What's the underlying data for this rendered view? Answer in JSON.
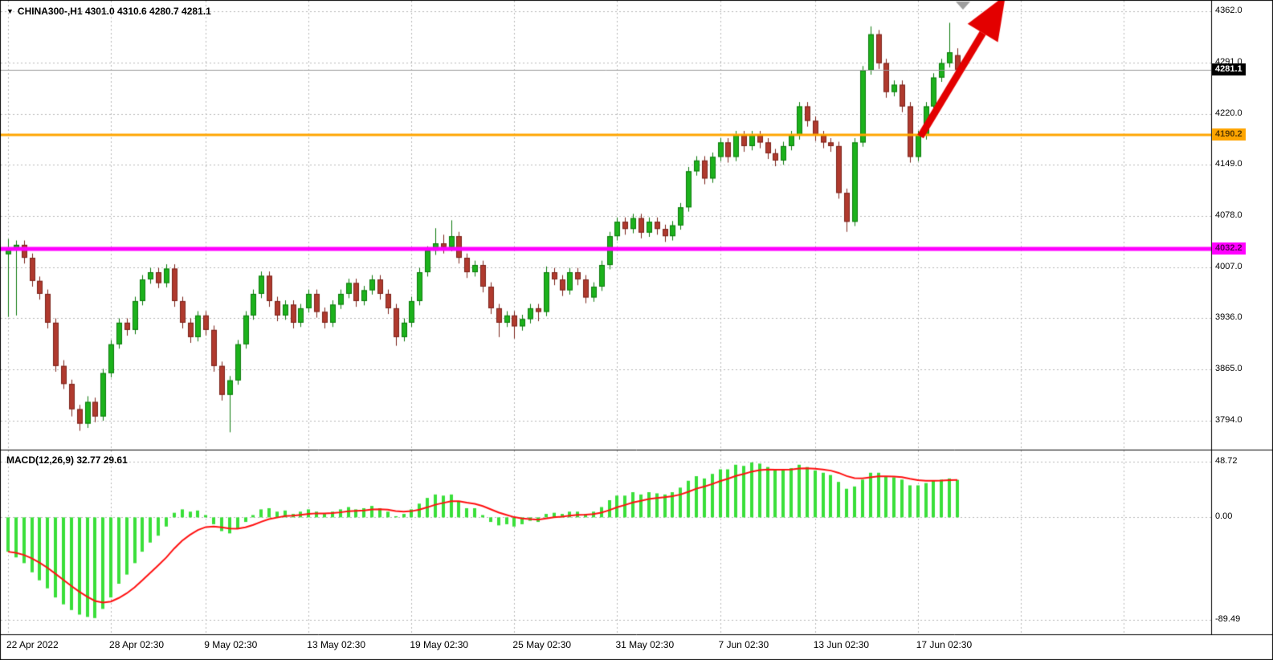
{
  "header": {
    "symbol_marker": "▼",
    "title": "CHINA300-,H1  4301.0 4310.6 4280.7 4281.1",
    "symbol": "CHINA300-",
    "period": "H1"
  },
  "indicator": {
    "label": "MACD(12,26,9) 32.77 29.61",
    "macd_value": 32.77,
    "signal_value": 29.61
  },
  "price_badges": {
    "current": {
      "label": "4281.1",
      "value": 4281.1,
      "bg": "#000000"
    },
    "resistance": {
      "label": "4190.2",
      "value": 4190.2,
      "bg": "#FFA500"
    },
    "support": {
      "label": "4032.2",
      "value": 4032.2,
      "bg": "#FF00FF"
    }
  },
  "colors": {
    "bull_fill": "#1CB21C",
    "bull_stroke": "#0E7A0E",
    "bear_fill": "#B03A2E",
    "bear_stroke": "#7B241C",
    "macd_bar": "#3ADF3A",
    "macd_signal": "#FF1111",
    "grid": "#b9b9b9",
    "bid_line": "#9a9a9a",
    "arrow": "#E30000",
    "marker_gray": "#9e9e9e"
  },
  "chart_data": [
    {
      "type": "candlestick",
      "title": "CHINA300-,H1",
      "ohlc_display": {
        "open": 4301.0,
        "high": 4310.6,
        "low": 4280.7,
        "close": 4281.1
      },
      "ylim": [
        3753.9,
        4377.6
      ],
      "y_ticks": [
        {
          "label": "4362.0",
          "value": 4362.0
        },
        {
          "label": "4291.0",
          "value": 4291.0
        },
        {
          "label": "4220.0",
          "value": 4220.0
        },
        {
          "label": "4149.0",
          "value": 4149.0
        },
        {
          "label": "4078.0",
          "value": 4078.0
        },
        {
          "label": "4007.0",
          "value": 4007.0
        },
        {
          "label": "3936.0",
          "value": 3936.0
        },
        {
          "label": "3865.0",
          "value": 3865.0
        },
        {
          "label": "3794.0",
          "value": 3794.0
        }
      ],
      "x_ticks": [
        {
          "label": "22 Apr 2022",
          "index": 0
        },
        {
          "label": "28 Apr 02:30",
          "index": 13
        },
        {
          "label": "9 May 02:30",
          "index": 25
        },
        {
          "label": "13 May 02:30",
          "index": 38
        },
        {
          "label": "19 May 02:30",
          "index": 51
        },
        {
          "label": "25 May 02:30",
          "index": 64
        },
        {
          "label": "31 May 02:30",
          "index": 77
        },
        {
          "label": "7 Jun 02:30",
          "index": 90
        },
        {
          "label": "13 Jun 02:30",
          "index": 102
        },
        {
          "label": "17 Jun 02:30",
          "index": 115
        }
      ],
      "extra_grid_indices": [
        128,
        141
      ],
      "horizontal_lines": [
        {
          "price": 4190.2,
          "color": "#FFA500",
          "width": 3
        },
        {
          "price": 4032.2,
          "color": "#FF00FF",
          "width": 5
        }
      ],
      "bid_line": {
        "price": 4281.1,
        "color": "#9a9a9a"
      },
      "annotation_arrow": {
        "color": "#E30000",
        "from": [
          1146,
          170
        ],
        "to": [
          1252,
          -6
        ]
      },
      "grid": true,
      "candles": [
        [
          4025,
          4046,
          3938,
          4031
        ],
        [
          4031,
          4044,
          3940,
          4038
        ],
        [
          4038,
          4044,
          4012,
          4020
        ],
        [
          4020,
          4026,
          3980,
          3988
        ],
        [
          3988,
          3994,
          3962,
          3970
        ],
        [
          3970,
          3976,
          3922,
          3930
        ],
        [
          3930,
          3936,
          3862,
          3870
        ],
        [
          3870,
          3878,
          3838,
          3845
        ],
        [
          3845,
          3851,
          3800,
          3810
        ],
        [
          3810,
          3816,
          3780,
          3790
        ],
        [
          3790,
          3828,
          3784,
          3820
        ],
        [
          3820,
          3826,
          3792,
          3800
        ],
        [
          3800,
          3866,
          3794,
          3860
        ],
        [
          3860,
          3906,
          3854,
          3900
        ],
        [
          3900,
          3936,
          3894,
          3930
        ],
        [
          3930,
          3936,
          3912,
          3920
        ],
        [
          3920,
          3966,
          3914,
          3960
        ],
        [
          3960,
          3996,
          3954,
          3990
        ],
        [
          3990,
          4006,
          3984,
          4000
        ],
        [
          4000,
          4006,
          3978,
          3985
        ],
        [
          3985,
          4011,
          3979,
          4005
        ],
        [
          4005,
          4011,
          3952,
          3960
        ],
        [
          3960,
          3966,
          3922,
          3930
        ],
        [
          3930,
          3936,
          3902,
          3910
        ],
        [
          3910,
          3946,
          3904,
          3940
        ],
        [
          3940,
          3946,
          3912,
          3920
        ],
        [
          3920,
          3926,
          3862,
          3870
        ],
        [
          3870,
          3876,
          3822,
          3830
        ],
        [
          3830,
          3856,
          3778,
          3850
        ],
        [
          3850,
          3906,
          3844,
          3900
        ],
        [
          3900,
          3946,
          3894,
          3940
        ],
        [
          3940,
          3976,
          3934,
          3970
        ],
        [
          3970,
          4001,
          3964,
          3995
        ],
        [
          3995,
          4001,
          3952,
          3960
        ],
        [
          3960,
          3966,
          3932,
          3940
        ],
        [
          3940,
          3961,
          3934,
          3955
        ],
        [
          3955,
          3961,
          3922,
          3930
        ],
        [
          3930,
          3956,
          3924,
          3950
        ],
        [
          3950,
          3976,
          3944,
          3970
        ],
        [
          3970,
          3976,
          3937,
          3945
        ],
        [
          3945,
          3951,
          3922,
          3930
        ],
        [
          3930,
          3961,
          3924,
          3955
        ],
        [
          3955,
          3976,
          3949,
          3970
        ],
        [
          3970,
          3991,
          3964,
          3985
        ],
        [
          3985,
          3991,
          3952,
          3960
        ],
        [
          3960,
          3981,
          3954,
          3975
        ],
        [
          3975,
          3996,
          3969,
          3990
        ],
        [
          3990,
          3996,
          3962,
          3970
        ],
        [
          3970,
          3976,
          3942,
          3950
        ],
        [
          3950,
          3956,
          3898,
          3910
        ],
        [
          3910,
          3936,
          3904,
          3930
        ],
        [
          3930,
          3966,
          3924,
          3960
        ],
        [
          3960,
          4006,
          3954,
          4000
        ],
        [
          4000,
          4036,
          3994,
          4030
        ],
        [
          4030,
          4061,
          4024,
          4040
        ],
        [
          4040,
          4052,
          4026,
          4035
        ],
        [
          4035,
          4072,
          4029,
          4050
        ],
        [
          4050,
          4056,
          4012,
          4020
        ],
        [
          4020,
          4026,
          3992,
          4000
        ],
        [
          4000,
          4016,
          3994,
          4010
        ],
        [
          4010,
          4016,
          3972,
          3980
        ],
        [
          3980,
          3986,
          3942,
          3950
        ],
        [
          3950,
          3956,
          3910,
          3930
        ],
        [
          3930,
          3946,
          3924,
          3940
        ],
        [
          3940,
          3946,
          3908,
          3925
        ],
        [
          3925,
          3941,
          3919,
          3935
        ],
        [
          3935,
          3956,
          3929,
          3950
        ],
        [
          3950,
          3956,
          3932,
          3945
        ],
        [
          3945,
          4008,
          3939,
          4000
        ],
        [
          4000,
          4006,
          3982,
          3990
        ],
        [
          3990,
          3996,
          3967,
          3975
        ],
        [
          3975,
          4006,
          3969,
          4000
        ],
        [
          4000,
          4006,
          3982,
          3990
        ],
        [
          3990,
          3996,
          3957,
          3965
        ],
        [
          3965,
          3986,
          3959,
          3980
        ],
        [
          3980,
          4016,
          3974,
          4010
        ],
        [
          4010,
          4056,
          4004,
          4050
        ],
        [
          4050,
          4076,
          4044,
          4070
        ],
        [
          4070,
          4076,
          4052,
          4060
        ],
        [
          4060,
          4081,
          4054,
          4075
        ],
        [
          4075,
          4081,
          4047,
          4055
        ],
        [
          4055,
          4076,
          4049,
          4070
        ],
        [
          4070,
          4076,
          4052,
          4060
        ],
        [
          4060,
          4066,
          4042,
          4050
        ],
        [
          4050,
          4071,
          4044,
          4065
        ],
        [
          4065,
          4096,
          4059,
          4090
        ],
        [
          4090,
          4146,
          4084,
          4140
        ],
        [
          4140,
          4161,
          4134,
          4155
        ],
        [
          4155,
          4161,
          4122,
          4130
        ],
        [
          4130,
          4166,
          4124,
          4160
        ],
        [
          4160,
          4186,
          4154,
          4180
        ],
        [
          4180,
          4186,
          4152,
          4160
        ],
        [
          4160,
          4196,
          4154,
          4190
        ],
        [
          4190,
          4196,
          4167,
          4175
        ],
        [
          4175,
          4196,
          4169,
          4190
        ],
        [
          4190,
          4196,
          4172,
          4180
        ],
        [
          4180,
          4186,
          4157,
          4165
        ],
        [
          4165,
          4171,
          4147,
          4155
        ],
        [
          4155,
          4181,
          4149,
          4175
        ],
        [
          4175,
          4196,
          4169,
          4190
        ],
        [
          4190,
          4236,
          4184,
          4230
        ],
        [
          4230,
          4236,
          4202,
          4210
        ],
        [
          4210,
          4216,
          4182,
          4190
        ],
        [
          4190,
          4196,
          4172,
          4180
        ],
        [
          4180,
          4186,
          4167,
          4175
        ],
        [
          4175,
          4181,
          4102,
          4110
        ],
        [
          4110,
          4116,
          4056,
          4070
        ],
        [
          4070,
          4186,
          4064,
          4180
        ],
        [
          4180,
          4286,
          4174,
          4280
        ],
        [
          4280,
          4341,
          4274,
          4330
        ],
        [
          4330,
          4336,
          4282,
          4290
        ],
        [
          4290,
          4296,
          4242,
          4250
        ],
        [
          4250,
          4266,
          4244,
          4260
        ],
        [
          4260,
          4266,
          4222,
          4230
        ],
        [
          4230,
          4236,
          4152,
          4160
        ],
        [
          4160,
          4196,
          4154,
          4190
        ],
        [
          4190,
          4236,
          4184,
          4230
        ],
        [
          4230,
          4276,
          4224,
          4270
        ],
        [
          4270,
          4296,
          4264,
          4290
        ],
        [
          4290,
          4346,
          4284,
          4305
        ],
        [
          4301,
          4310.6,
          4280.7,
          4281.1
        ]
      ]
    },
    {
      "type": "bar",
      "name": "MACD(12,26,9)",
      "values_display": {
        "macd": 32.77,
        "signal": 29.61
      },
      "ylim": [
        -102.2,
        57.8
      ],
      "signal_period": 9,
      "y_ticks": [
        {
          "label": "48.72",
          "value": 48.72
        },
        {
          "label": "0.00",
          "value": 0
        },
        {
          "label": "-89.49",
          "value": -89.49
        }
      ],
      "histogram": [
        -30,
        -35,
        -40,
        -48,
        -55,
        -62,
        -70,
        -76,
        -81,
        -85,
        -87,
        -88,
        -80,
        -70,
        -58,
        -50,
        -40,
        -30,
        -22,
        -16,
        -8,
        4,
        7,
        5,
        6,
        2,
        -6,
        -12,
        -14,
        -10,
        -4,
        2,
        7,
        8,
        5,
        6,
        3,
        5,
        7,
        5,
        3,
        5,
        7,
        9,
        7,
        8,
        10,
        8,
        5,
        1,
        3,
        7,
        12,
        17,
        20,
        19,
        20,
        14,
        8,
        8,
        2,
        -4,
        -7,
        -6,
        -8,
        -6,
        -3,
        -4,
        3,
        4,
        3,
        5,
        5,
        3,
        5,
        9,
        15,
        19,
        19,
        22,
        20,
        22,
        21,
        20,
        22,
        26,
        32,
        36,
        34,
        38,
        42,
        42,
        46,
        45,
        48,
        47,
        44,
        41,
        41,
        43,
        46,
        44,
        41,
        39,
        37,
        31,
        25,
        27,
        33,
        39,
        39,
        36,
        35,
        33,
        28,
        28,
        30,
        32,
        33,
        34,
        32.77
      ]
    }
  ]
}
